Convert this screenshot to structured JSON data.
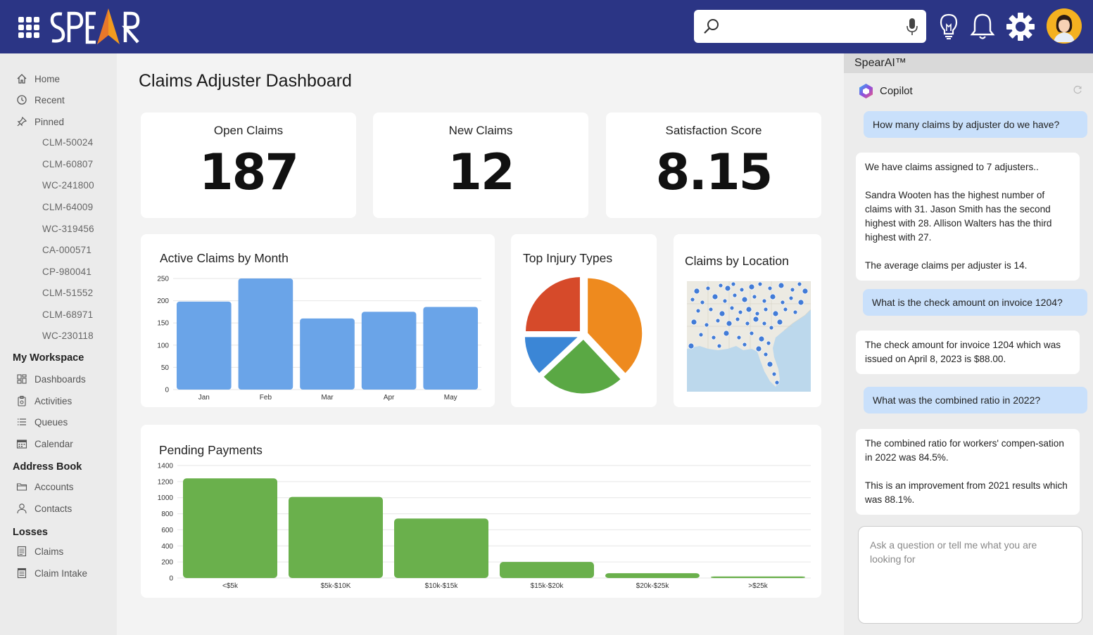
{
  "app": {
    "logo_text": "SPEAR",
    "search": {
      "placeholder": "",
      "value": ""
    }
  },
  "icons": {
    "apps": "apps-grid-icon",
    "search": "search-icon",
    "mic": "microphone-icon",
    "ideas": "lightbulb-icon",
    "notifications": "bell-icon",
    "settings": "gear-icon",
    "profile": "avatar"
  },
  "colors": {
    "topbar": "#2b3585",
    "bar_blue": "#6aa4e8",
    "bar_green": "#6ab04c",
    "pie_red": "#d64a2a",
    "pie_orange": "#ee8a1e",
    "pie_green": "#5aa844",
    "pie_blue": "#3b86d6"
  },
  "sidebar": {
    "home": "Home",
    "recent": "Recent",
    "pinned": "Pinned",
    "pinned_items": [
      "CLM-50024",
      "CLM-60807",
      "WC-241800",
      "CLM-64009",
      "WC-319456",
      "CA-000571",
      "CP-980041",
      "CLM-51552",
      "CLM-68971",
      "WC-230118"
    ],
    "workspace_header": "My Workspace",
    "workspace_items": [
      "Dashboards",
      "Activities",
      "Queues",
      "Calendar"
    ],
    "address_header": "Address Book",
    "address_items": [
      "Accounts",
      "Contacts"
    ],
    "losses_header": "Losses",
    "losses_items": [
      "Claims",
      "Claim Intake"
    ]
  },
  "main": {
    "title": "Claims Adjuster Dashboard",
    "kpis": [
      {
        "label": "Open Claims",
        "value": "187"
      },
      {
        "label": "New Claims",
        "value": "12"
      },
      {
        "label": "Satisfaction Score",
        "value": "8.15"
      }
    ],
    "map_title": "Claims by Location"
  },
  "chart_data": [
    {
      "type": "bar",
      "title": "Active Claims by Month",
      "categories": [
        "Jan",
        "Feb",
        "Mar",
        "Apr",
        "May"
      ],
      "values": [
        198,
        250,
        160,
        175,
        186
      ],
      "ylim": [
        0,
        250
      ],
      "yticks": [
        0,
        50,
        100,
        150,
        200,
        250
      ],
      "grid": true
    },
    {
      "type": "pie",
      "title": "Top Injury Types",
      "values": [
        38,
        25,
        12,
        25
      ],
      "colors": [
        "#ee8a1e",
        "#5aa844",
        "#3b86d6",
        "#d64a2a"
      ]
    },
    {
      "type": "bar",
      "title": "Pending Payments",
      "categories": [
        "<$5k",
        "$5k-$10K",
        "$10k-$15k",
        "$15k-$20k",
        "$20k-$25k",
        ">$25k"
      ],
      "values": [
        1240,
        1010,
        740,
        200,
        60,
        20
      ],
      "ylim": [
        0,
        1400
      ],
      "yticks": [
        0,
        200,
        400,
        600,
        800,
        1000,
        1200,
        1400
      ],
      "grid": true
    }
  ],
  "ai": {
    "header": "SpearAI™",
    "assistant_name": "Copilot",
    "messages": [
      {
        "role": "user",
        "text": "How many claims by adjuster do we have?"
      },
      {
        "role": "bot",
        "paragraphs": [
          "We have claims assigned to 7 adjusters..",
          "Sandra Wooten has the highest number of claims with 31. Jason Smith has the second highest with 28. Allison Walters has the third highest with 27.",
          "The average claims per adjuster is 14."
        ]
      },
      {
        "role": "user",
        "text": "What is the check amount on invoice 1204?"
      },
      {
        "role": "bot",
        "paragraphs": [
          "The check amount for invoice 1204 which was issued on April 8, 2023 is $88.00."
        ]
      },
      {
        "role": "user",
        "text": "What was the combined ratio in 2022?"
      },
      {
        "role": "bot",
        "paragraphs": [
          "The combined ratio for workers' compen-sation in 2022 was 84.5%.",
          "This is an improvement from 2021 results which was 88.1%."
        ]
      }
    ],
    "input_placeholder": "Ask a question or tell me what you are looking for"
  }
}
